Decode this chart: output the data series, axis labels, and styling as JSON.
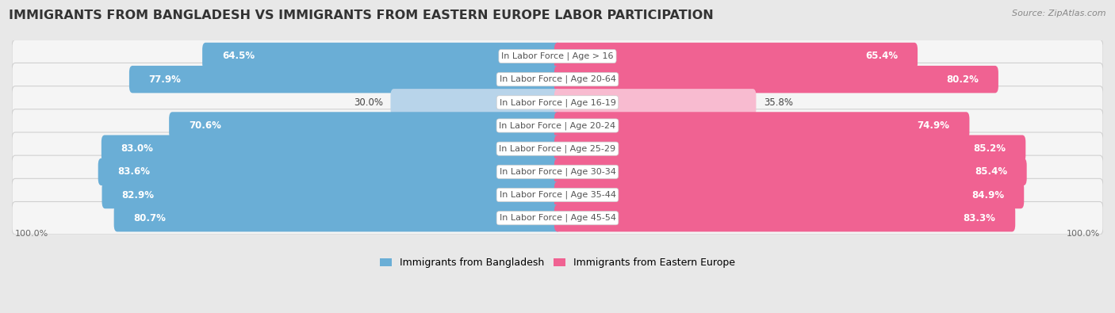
{
  "title": "IMMIGRANTS FROM BANGLADESH VS IMMIGRANTS FROM EASTERN EUROPE LABOR PARTICIPATION",
  "source": "Source: ZipAtlas.com",
  "categories": [
    "In Labor Force | Age > 16",
    "In Labor Force | Age 20-64",
    "In Labor Force | Age 16-19",
    "In Labor Force | Age 20-24",
    "In Labor Force | Age 25-29",
    "In Labor Force | Age 30-34",
    "In Labor Force | Age 35-44",
    "In Labor Force | Age 45-54"
  ],
  "bangladesh_values": [
    64.5,
    77.9,
    30.0,
    70.6,
    83.0,
    83.6,
    82.9,
    80.7
  ],
  "eastern_europe_values": [
    65.4,
    80.2,
    35.8,
    74.9,
    85.2,
    85.4,
    84.9,
    83.3
  ],
  "bangladesh_color": "#6aaed6",
  "bangladesh_color_light": "#b8d4ea",
  "eastern_europe_color": "#f06292",
  "eastern_europe_color_light": "#f8bbd0",
  "background_color": "#e8e8e8",
  "row_bg_color": "#f5f5f5",
  "row_border_color": "#d0d0d0",
  "legend_bangladesh": "Immigrants from Bangladesh",
  "legend_eastern_europe": "Immigrants from Eastern Europe",
  "max_value": 100.0,
  "title_fontsize": 11.5,
  "label_fontsize": 8.0,
  "value_fontsize": 8.5
}
